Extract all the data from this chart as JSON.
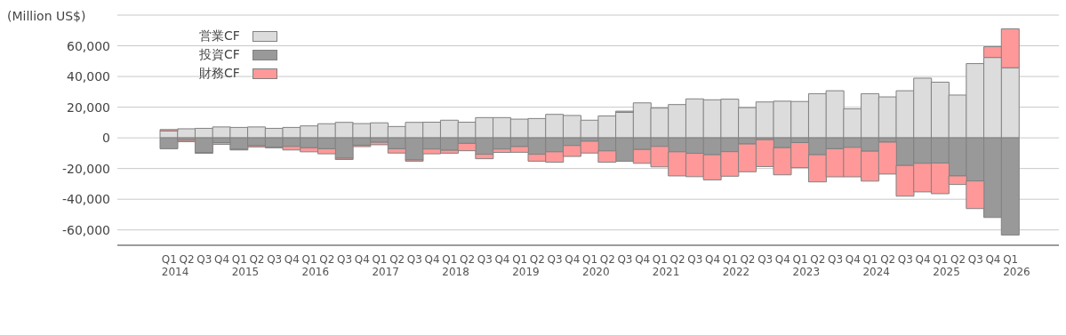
{
  "chart_data": {
    "type": "bar",
    "stacked": true,
    "ylabel": "(Million US$)",
    "categories": [
      "Q1 2014",
      "Q2",
      "Q3",
      "Q4",
      "Q1 2015",
      "Q2",
      "Q3",
      "Q4",
      "Q1 2016",
      "Q2",
      "Q3",
      "Q4",
      "Q1 2017",
      "Q2",
      "Q3",
      "Q4",
      "Q1 2018",
      "Q2",
      "Q3",
      "Q4",
      "Q1 2019",
      "Q2",
      "Q3",
      "Q4",
      "Q1 2020",
      "Q2",
      "Q3",
      "Q4",
      "Q1 2021",
      "Q2",
      "Q3",
      "Q4",
      "Q1 2022",
      "Q2",
      "Q3",
      "Q4",
      "Q1 2023",
      "Q2",
      "Q3",
      "Q4",
      "Q1 2024",
      "Q2",
      "Q3",
      "Q4",
      "Q1 2025",
      "Q2",
      "Q3",
      "Q4",
      "Q1 2026"
    ],
    "series": [
      {
        "name": "営業CF",
        "color": "#dcdcdc",
        "values": [
          4500,
          5900,
          6200,
          7100,
          6800,
          7100,
          6200,
          6800,
          7800,
          9200,
          10100,
          9300,
          9800,
          7400,
          10100,
          10200,
          11500,
          10200,
          13200,
          13200,
          12200,
          12600,
          15300,
          14600,
          11500,
          14300,
          16600,
          22800,
          19400,
          21700,
          25400,
          24800,
          25200,
          19700,
          23400,
          23900,
          23700,
          28800,
          30700,
          18900,
          28800,
          26700,
          30700,
          38900,
          36300,
          27900,
          48400,
          52400,
          45700
        ]
      },
      {
        "name": "投資CF",
        "color": "#999999",
        "values": [
          -7100,
          -1600,
          -9500,
          -3100,
          -7400,
          -5100,
          -6000,
          -5600,
          -6500,
          -7100,
          -13300,
          -4800,
          -2900,
          -7100,
          -14400,
          -7300,
          -8100,
          -3600,
          -10700,
          -7300,
          -5700,
          -10700,
          -9100,
          -5000,
          -2200,
          -8500,
          -15300,
          -7600,
          -5600,
          -9100,
          -10100,
          -11000,
          -9000,
          -4000,
          -1200,
          -6400,
          -3100,
          -11000,
          -7100,
          -6200,
          -8700,
          -2800,
          -18000,
          -16600,
          -16400,
          -24800,
          -28100,
          -51900,
          -63400
        ]
      },
      {
        "name": "財務CF",
        "color": "#ff9999",
        "values": [
          900,
          -900,
          -600,
          -1100,
          -500,
          -800,
          -500,
          -2300,
          -2600,
          -3300,
          -800,
          -900,
          -1600,
          -2800,
          -800,
          -3100,
          -1900,
          -4800,
          -2900,
          -2200,
          -3700,
          -4500,
          -6800,
          -7100,
          -7700,
          -7400,
          800,
          -9000,
          -13300,
          -15700,
          -15200,
          -16400,
          -16000,
          -18100,
          -17500,
          -17700,
          -16300,
          -17700,
          -18300,
          -19200,
          -19500,
          -20800,
          -20000,
          -18600,
          -20000,
          -5600,
          -18000,
          7000,
          25400
        ]
      }
    ],
    "ylim": [
      -70000,
      80000
    ],
    "yticks": [
      {
        "value": -60000,
        "label": "-60,000"
      },
      {
        "value": -40000,
        "label": "-40,000"
      },
      {
        "value": -20000,
        "label": "-20,000"
      },
      0,
      {
        "value": 20000,
        "label": "20,000"
      },
      {
        "value": 40000,
        "label": "40,000"
      },
      {
        "value": 60000,
        "label": "60,000"
      }
    ],
    "grid": "y",
    "legend": "top left"
  }
}
